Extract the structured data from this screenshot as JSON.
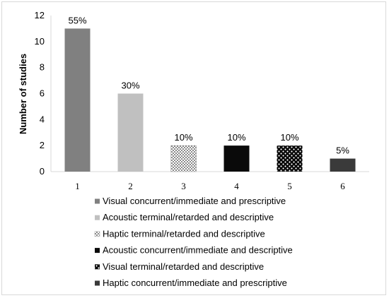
{
  "chart_data": {
    "type": "bar",
    "categories": [
      "1",
      "2",
      "3",
      "4",
      "5",
      "6"
    ],
    "values": [
      11,
      6,
      2,
      2,
      2,
      1
    ],
    "data_labels": [
      "55%",
      "30%",
      "10%",
      "10%",
      "10%",
      "5%"
    ],
    "ylabel": "Number of studies",
    "xlabel": "",
    "ylim": [
      0,
      12
    ],
    "yticks": [
      0,
      2,
      4,
      6,
      8,
      10,
      12
    ],
    "grid": false,
    "legend_position": "bottom",
    "legend": [
      "Visual concurrent/immediate and prescriptive",
      "Acoustic terminal/retarded and descriptive",
      "Haptic terminal/retarded and descriptive",
      "Acoustic concurrent/immediate and descriptive",
      "Visual terminal/retarded and descriptive",
      "Haptic concurrent/immediate and prescriptive"
    ],
    "fills": [
      "#808080",
      "#c0c0c0",
      "dots-black-on-white",
      "#0a0a0a",
      "dots-white-on-black",
      "#3a3a3a"
    ]
  }
}
